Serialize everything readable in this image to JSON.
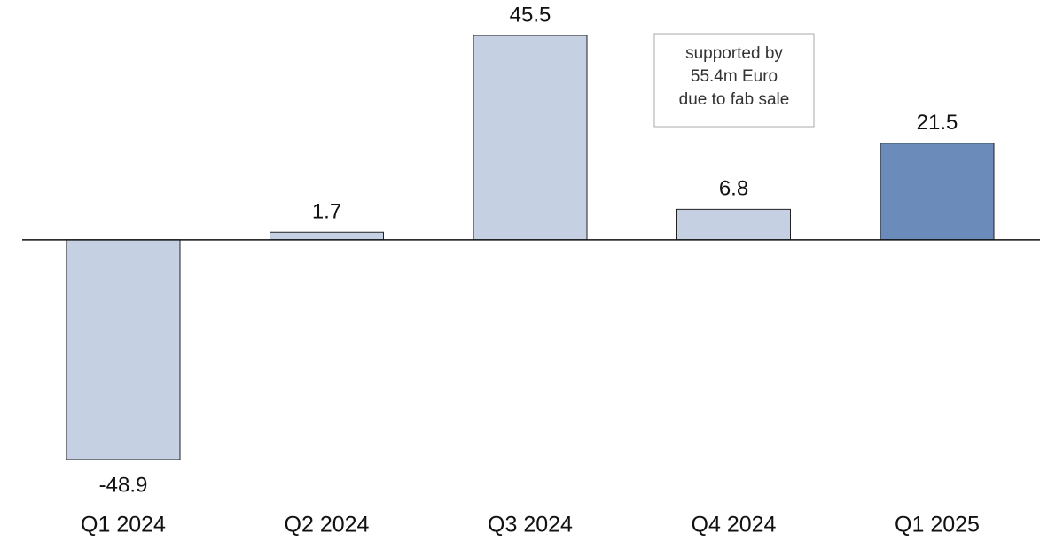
{
  "chart_data": {
    "type": "bar",
    "categories": [
      "Q1 2024",
      "Q2 2024",
      "Q3 2024",
      "Q4 2024",
      "Q1 2025"
    ],
    "values": [
      -48.9,
      1.7,
      45.5,
      6.8,
      21.5
    ],
    "colors": [
      "#c5d0e2",
      "#c5d0e2",
      "#c5d0e2",
      "#c5d0e2",
      "#6b8cba"
    ],
    "annotation": [
      "supported by",
      "55.4m Euro",
      "due to fab sale"
    ]
  }
}
